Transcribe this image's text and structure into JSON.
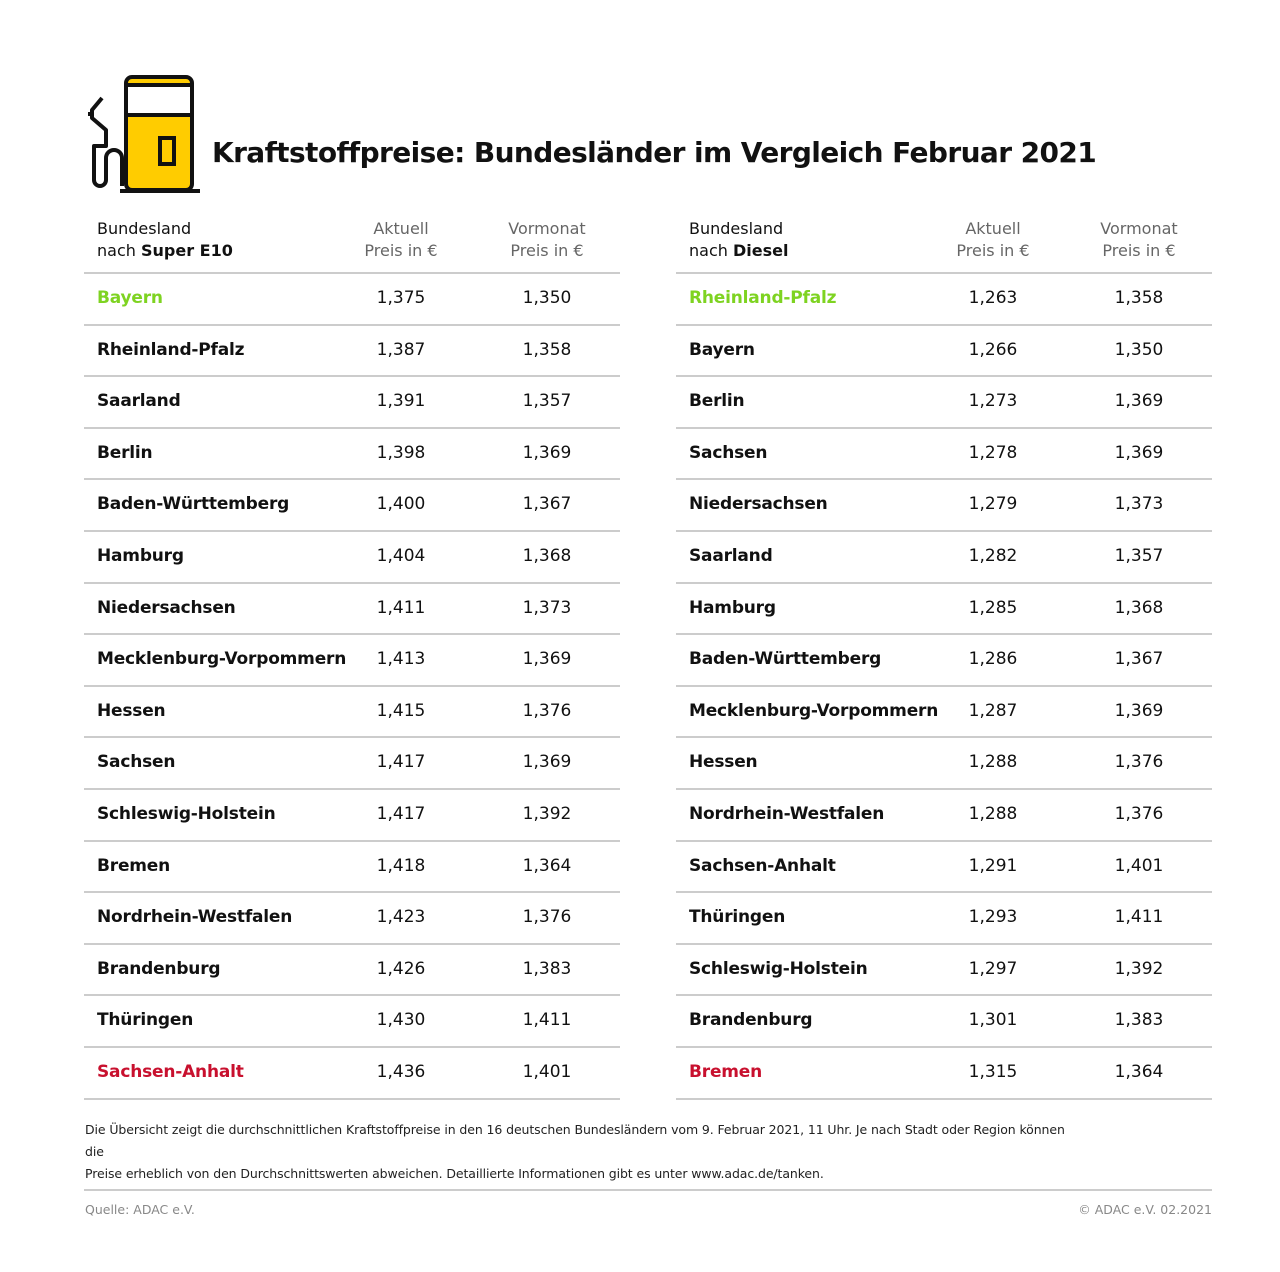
{
  "title": "Kraftstoffpreise: Bundesländer im Vergleich Februar 2021",
  "colors": {
    "best": "#7ed321",
    "worst": "#c8102e",
    "icon_fill": "#ffcc00"
  },
  "icon": "fuel-pump-icon",
  "tables": [
    {
      "head_line1": "Bundesland",
      "head_prefix": "nach ",
      "head_fuel": "Super E10",
      "col1_l1": "Aktuell",
      "col1_l2": "Preis in €",
      "col2_l1": "Vormonat",
      "col2_l2": "Preis in €",
      "rows": [
        [
          "Bayern",
          "1,375",
          "1,350"
        ],
        [
          "Rheinland-Pfalz",
          "1,387",
          "1,358"
        ],
        [
          "Saarland",
          "1,391",
          "1,357"
        ],
        [
          "Berlin",
          "1,398",
          "1,369"
        ],
        [
          "Baden-Württemberg",
          "1,400",
          "1,367"
        ],
        [
          "Hamburg",
          "1,404",
          "1,368"
        ],
        [
          "Niedersachsen",
          "1,411",
          "1,373"
        ],
        [
          "Mecklenburg-Vorpommern",
          "1,413",
          "1,369"
        ],
        [
          "Hessen",
          "1,415",
          "1,376"
        ],
        [
          "Sachsen",
          "1,417",
          "1,369"
        ],
        [
          "Schleswig-Holstein",
          "1,417",
          "1,392"
        ],
        [
          "Bremen",
          "1,418",
          "1,364"
        ],
        [
          "Nordrhein-Westfalen",
          "1,423",
          "1,376"
        ],
        [
          "Brandenburg",
          "1,426",
          "1,383"
        ],
        [
          "Thüringen",
          "1,430",
          "1,411"
        ],
        [
          "Sachsen-Anhalt",
          "1,436",
          "1,401"
        ]
      ]
    },
    {
      "head_line1": "Bundesland",
      "head_prefix": "nach ",
      "head_fuel": "Diesel",
      "col1_l1": "Aktuell",
      "col1_l2": "Preis in €",
      "col2_l1": "Vormonat",
      "col2_l2": "Preis in €",
      "rows": [
        [
          "Rheinland-Pfalz",
          "1,263",
          "1,358"
        ],
        [
          "Bayern",
          "1,266",
          "1,350"
        ],
        [
          "Berlin",
          "1,273",
          "1,369"
        ],
        [
          "Sachsen",
          "1,278",
          "1,369"
        ],
        [
          "Niedersachsen",
          "1,279",
          "1,373"
        ],
        [
          "Saarland",
          "1,282",
          "1,357"
        ],
        [
          "Hamburg",
          "1,285",
          "1,368"
        ],
        [
          "Baden-Württemberg",
          "1,286",
          "1,367"
        ],
        [
          "Mecklenburg-Vorpommern",
          "1,287",
          "1,369"
        ],
        [
          "Hessen",
          "1,288",
          "1,376"
        ],
        [
          "Nordrhein-Westfalen",
          "1,288",
          "1,376"
        ],
        [
          "Sachsen-Anhalt",
          "1,291",
          "1,401"
        ],
        [
          "Thüringen",
          "1,293",
          "1,411"
        ],
        [
          "Schleswig-Holstein",
          "1,297",
          "1,392"
        ],
        [
          "Brandenburg",
          "1,301",
          "1,383"
        ],
        [
          "Bremen",
          "1,315",
          "1,364"
        ]
      ]
    }
  ],
  "note_line1": "Die Übersicht zeigt die durchschnittlichen Kraftstoffpreise in den 16 deutschen Bundesländern vom 9. Februar 2021, 11 Uhr. Je nach Stadt oder Region können die",
  "note_line2": "Preise erheblich von den Durchschnittswerten abweichen. Detaillierte Informationen gibt es unter www.adac.de/tanken.",
  "source": "Quelle: ADAC e.V.",
  "copyright": "© ADAC e.V. 02.2021"
}
